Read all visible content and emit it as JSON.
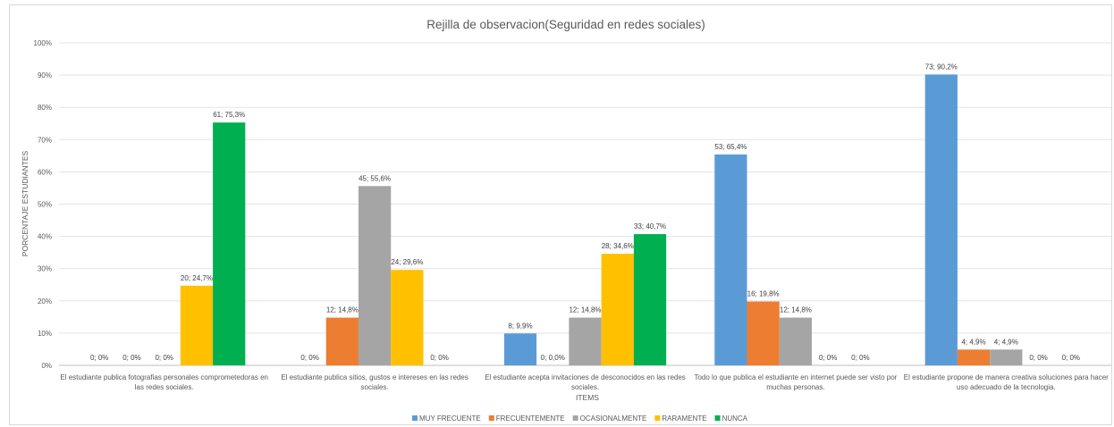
{
  "chart_data": {
    "type": "bar",
    "title": "Rejilla de observacion(Seguridad  en redes sociales)",
    "xlabel": "ITEMS",
    "ylabel": "PORCENTAJE ESTUDIANTES",
    "ylim": [
      0,
      100
    ],
    "yticks": [
      "0%",
      "10%",
      "20%",
      "30%",
      "40%",
      "50%",
      "60%",
      "70%",
      "80%",
      "90%",
      "100%"
    ],
    "grid": true,
    "legend_position": "bottom",
    "categories": [
      [
        "El estudiante publica fotografias personales comprometedoras en",
        "las redes sociales."
      ],
      [
        "El estudiante publica sitios, gustos e intereses en las redes",
        "sociales."
      ],
      [
        "El estudiante acepta invitaciones de desconocidos en las redes",
        "sociales."
      ],
      [
        "Todo lo que publica el estudiante en internet puede ser visto por",
        "muchas personas."
      ],
      [
        "El estudiante propone de manera creativa soluciones para hacer",
        "uso adecuado de la tecnologia."
      ]
    ],
    "series": [
      {
        "name": "MUY FRECUENTE",
        "color": "#5b9bd5",
        "values": [
          0,
          0,
          9.9,
          65.4,
          90.2
        ],
        "labels": [
          "0; 0%",
          "0; 0%",
          "8; 9,9%",
          "53; 65,4%",
          "73; 90,2%"
        ]
      },
      {
        "name": "FRECUENTEMENTE",
        "color": "#ed7d31",
        "values": [
          0,
          14.8,
          0,
          19.8,
          4.9
        ],
        "labels": [
          "0; 0%",
          "12; 14,8%",
          "0; 0,0%",
          "16; 19,8%",
          "4; 4,9%"
        ]
      },
      {
        "name": "OCASIONALMENTE",
        "color": "#a5a5a5",
        "values": [
          0,
          55.6,
          14.8,
          14.8,
          4.9
        ],
        "labels": [
          "0; 0%",
          "45; 55,6%",
          "12; 14,8%",
          "12; 14,8%",
          "4; 4,9%"
        ]
      },
      {
        "name": "RARAMENTE",
        "color": "#ffc000",
        "values": [
          24.7,
          29.6,
          34.6,
          0,
          0
        ],
        "labels": [
          "20; 24,7%",
          "24; 29,6%",
          "28; 34,6%",
          "0; 0%",
          "0; 0%"
        ]
      },
      {
        "name": "NUNCA",
        "color": "#00b050",
        "values": [
          75.3,
          0,
          40.7,
          0,
          0
        ],
        "labels": [
          "61; 75,3%",
          "0; 0%",
          "33; 40,7%",
          "0; 0%",
          "0; 0%"
        ]
      }
    ]
  }
}
